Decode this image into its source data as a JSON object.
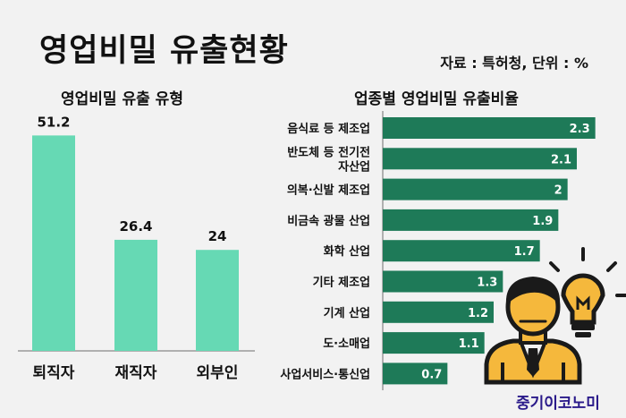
{
  "title": "영업비밀 유출현황",
  "source": "자료 : 특허청, 단위 : %",
  "brand": "중기이코노미",
  "colors": {
    "left_bar": "#66d9b4",
    "right_bar": "#1e7a58",
    "axis": "#9a9a9a",
    "icon_face": "#f5b83c",
    "icon_dark": "#1a1a1a"
  },
  "icons": [
    "businessman-icon",
    "lightbulb-icon"
  ],
  "chart_data": [
    {
      "type": "bar",
      "orientation": "vertical",
      "title": "영업비밀 유출 유형",
      "categories": [
        "퇴직자",
        "재직자",
        "외부인"
      ],
      "values": [
        51.2,
        26.4,
        24
      ],
      "value_labels": [
        "51.2",
        "26.4",
        "24"
      ],
      "ylim": [
        0,
        60
      ],
      "grid": false
    },
    {
      "type": "bar",
      "orientation": "horizontal",
      "title": "업종별 영업비밀 유출비율",
      "categories": [
        [
          "음식료 등 제조업"
        ],
        [
          "반도체 등 전기전",
          "자산업"
        ],
        [
          "의복·신발 제조업"
        ],
        [
          "비금속 광물 산업"
        ],
        [
          "화학 산업"
        ],
        [
          "기타 제조업"
        ],
        [
          "기계 산업"
        ],
        [
          "도·소매업"
        ],
        [
          "사업서비스·통신업"
        ]
      ],
      "values": [
        2.3,
        2.1,
        2,
        1.9,
        1.7,
        1.3,
        1.2,
        1.1,
        0.7
      ],
      "value_labels": [
        "2.3",
        "2.1",
        "2",
        "1.9",
        "1.7",
        "1.3",
        "1.2",
        "1.1",
        "0.7"
      ],
      "xlim": [
        0,
        2.4
      ],
      "grid": false
    }
  ]
}
